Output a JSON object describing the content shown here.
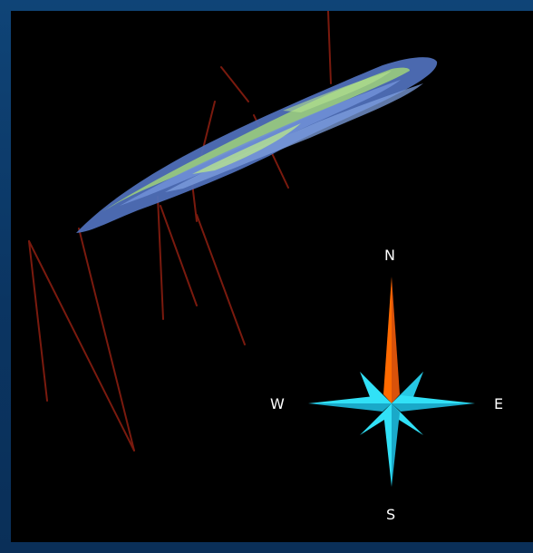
{
  "viewer": {
    "background": "#000000",
    "frame_color": "#0d3a66"
  },
  "compass": {
    "north_label": "N",
    "south_label": "S",
    "east_label": "E",
    "west_label": "W",
    "north_color": "#ff6a00",
    "star_color": "#31e1f7",
    "star_shade": "#1aa9c9"
  },
  "scene": {
    "ore_body_colors": [
      "#6f8fd6",
      "#9fd27a",
      "#4f6fb8"
    ],
    "drill_hole_color": "#7a1a0e"
  }
}
